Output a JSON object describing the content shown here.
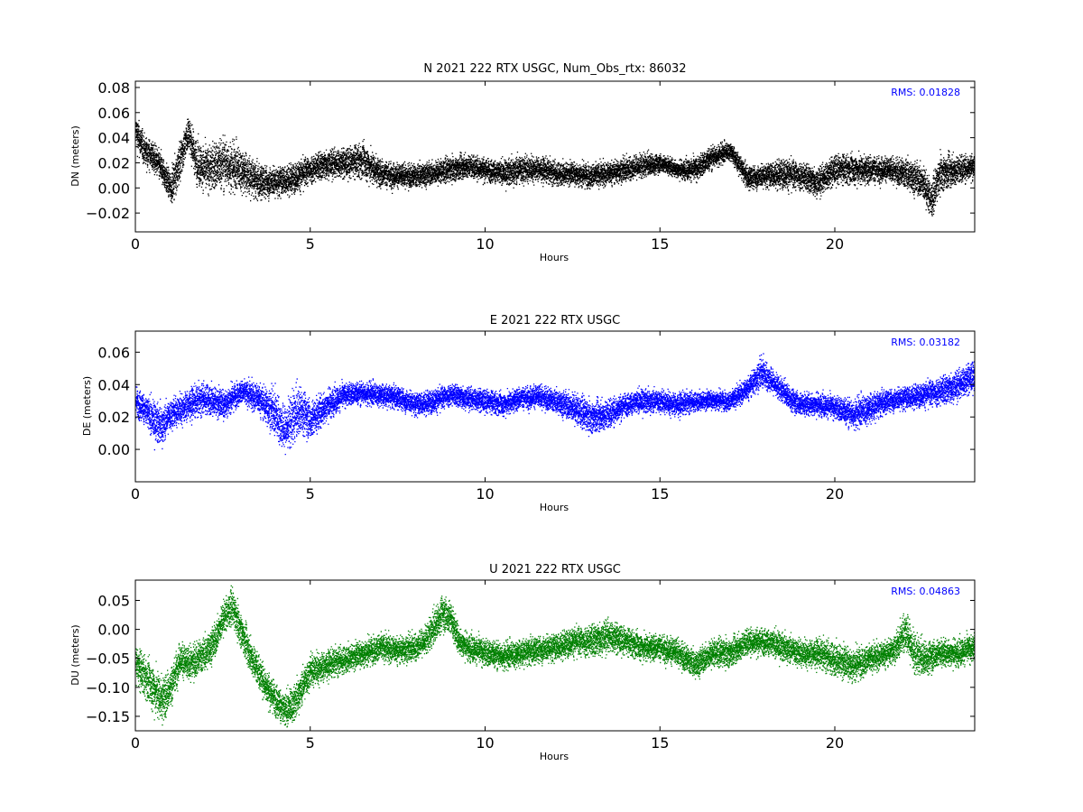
{
  "chart_data": [
    {
      "type": "scatter",
      "title": "N 2021 222 RTX  USGC, Num_Obs_rtx: 86032",
      "xlabel": "Hours",
      "ylabel": "DN (meters)",
      "xlim": [
        0,
        24
      ],
      "ylim": [
        -0.035,
        0.085
      ],
      "xticks": [
        0,
        5,
        10,
        15,
        20
      ],
      "yticks": [
        -0.02,
        0.0,
        0.02,
        0.04,
        0.06,
        0.08
      ],
      "ytick_labels": [
        "−0.02",
        "0.00",
        "0.02",
        "0.04",
        "0.06",
        "0.08"
      ],
      "annotation": "RMS:  0.01828",
      "grid": false,
      "color": "#000000",
      "x": [
        0,
        0.25,
        0.5,
        0.75,
        1.0,
        1.25,
        1.5,
        1.75,
        2.0,
        2.5,
        3.0,
        3.5,
        4.0,
        4.5,
        5.0,
        5.5,
        6.0,
        6.5,
        7.0,
        7.5,
        8.0,
        8.5,
        9.0,
        9.5,
        10.0,
        10.5,
        11.0,
        11.5,
        12.0,
        12.5,
        13.0,
        13.5,
        14.0,
        14.5,
        15.0,
        15.5,
        16.0,
        16.5,
        17.0,
        17.5,
        18.0,
        18.5,
        19.0,
        19.5,
        20.0,
        20.5,
        21.0,
        21.5,
        22.0,
        22.5,
        22.75,
        23.0,
        23.5,
        24.0
      ],
      "y": [
        0.045,
        0.03,
        0.025,
        0.015,
        0.0,
        0.02,
        0.045,
        0.02,
        0.015,
        0.02,
        0.015,
        0.005,
        0.005,
        0.008,
        0.015,
        0.02,
        0.02,
        0.022,
        0.012,
        0.01,
        0.01,
        0.012,
        0.015,
        0.018,
        0.015,
        0.012,
        0.015,
        0.016,
        0.012,
        0.012,
        0.01,
        0.012,
        0.015,
        0.018,
        0.02,
        0.015,
        0.015,
        0.025,
        0.03,
        0.008,
        0.01,
        0.012,
        0.01,
        0.005,
        0.015,
        0.015,
        0.015,
        0.015,
        0.012,
        0.005,
        -0.01,
        0.012,
        0.015,
        0.018
      ],
      "spread": [
        0.012,
        0.01,
        0.01,
        0.01,
        0.01,
        0.015,
        0.01,
        0.015,
        0.015,
        0.018,
        0.015,
        0.012,
        0.01,
        0.01,
        0.01,
        0.01,
        0.01,
        0.012,
        0.01,
        0.008,
        0.008,
        0.008,
        0.008,
        0.008,
        0.008,
        0.008,
        0.01,
        0.008,
        0.008,
        0.008,
        0.008,
        0.008,
        0.008,
        0.008,
        0.006,
        0.006,
        0.008,
        0.008,
        0.006,
        0.008,
        0.008,
        0.01,
        0.01,
        0.01,
        0.01,
        0.01,
        0.01,
        0.008,
        0.01,
        0.012,
        0.012,
        0.012,
        0.01,
        0.008
      ]
    },
    {
      "type": "scatter",
      "title": "E 2021 222 RTX  USGC",
      "xlabel": "Hours",
      "ylabel": "DE (meters)",
      "xlim": [
        0,
        24
      ],
      "ylim": [
        -0.02,
        0.073
      ],
      "xticks": [
        0,
        5,
        10,
        15,
        20
      ],
      "yticks": [
        0.0,
        0.02,
        0.04,
        0.06
      ],
      "ytick_labels": [
        "0.00",
        "0.02",
        "0.04",
        "0.06"
      ],
      "annotation": "RMS:  0.03182",
      "grid": false,
      "color": "#0000ff",
      "x": [
        0,
        0.25,
        0.5,
        0.75,
        1.0,
        1.5,
        2.0,
        2.5,
        3.0,
        3.5,
        4.0,
        4.25,
        4.5,
        4.75,
        5.0,
        5.5,
        6.0,
        6.5,
        7.0,
        7.5,
        8.0,
        8.5,
        9.0,
        9.5,
        10.0,
        10.5,
        11.0,
        11.5,
        12.0,
        12.5,
        13.0,
        13.5,
        14.0,
        14.5,
        15.0,
        15.5,
        16.0,
        16.5,
        17.0,
        17.5,
        17.9,
        18.3,
        18.7,
        19.0,
        19.5,
        20.0,
        20.5,
        21.0,
        21.5,
        22.0,
        22.5,
        23.0,
        23.5,
        24.0
      ],
      "y": [
        0.03,
        0.025,
        0.018,
        0.015,
        0.022,
        0.028,
        0.032,
        0.028,
        0.036,
        0.032,
        0.022,
        0.012,
        0.02,
        0.025,
        0.018,
        0.028,
        0.034,
        0.035,
        0.034,
        0.032,
        0.028,
        0.03,
        0.034,
        0.032,
        0.03,
        0.028,
        0.032,
        0.033,
        0.03,
        0.026,
        0.02,
        0.022,
        0.028,
        0.03,
        0.03,
        0.028,
        0.03,
        0.031,
        0.03,
        0.038,
        0.048,
        0.04,
        0.032,
        0.028,
        0.028,
        0.026,
        0.022,
        0.026,
        0.03,
        0.032,
        0.034,
        0.036,
        0.04,
        0.046
      ],
      "spread": [
        0.008,
        0.008,
        0.01,
        0.01,
        0.008,
        0.008,
        0.008,
        0.008,
        0.006,
        0.008,
        0.012,
        0.012,
        0.014,
        0.012,
        0.01,
        0.008,
        0.006,
        0.006,
        0.006,
        0.006,
        0.006,
        0.006,
        0.006,
        0.006,
        0.006,
        0.006,
        0.006,
        0.006,
        0.006,
        0.008,
        0.008,
        0.008,
        0.006,
        0.006,
        0.006,
        0.006,
        0.005,
        0.005,
        0.005,
        0.006,
        0.008,
        0.006,
        0.006,
        0.006,
        0.006,
        0.006,
        0.008,
        0.008,
        0.006,
        0.006,
        0.006,
        0.008,
        0.008,
        0.008
      ]
    },
    {
      "type": "scatter",
      "title": "U 2021 222 RTX  USGC",
      "xlabel": "Hours",
      "ylabel": "DU (meters)",
      "xlim": [
        0,
        24
      ],
      "ylim": [
        -0.175,
        0.085
      ],
      "xticks": [
        0,
        5,
        10,
        15,
        20
      ],
      "yticks": [
        -0.15,
        -0.1,
        -0.05,
        0.0,
        0.05
      ],
      "ytick_labels": [
        "−0.15",
        "−0.10",
        "−0.05",
        "0.00",
        "0.05"
      ],
      "annotation": "RMS:  0.04863",
      "grid": false,
      "color": "#008000",
      "x": [
        0,
        0.25,
        0.5,
        0.75,
        1.0,
        1.25,
        1.5,
        1.75,
        2.0,
        2.25,
        2.5,
        2.75,
        3.0,
        3.25,
        3.5,
        3.75,
        4.0,
        4.25,
        4.5,
        4.75,
        5.0,
        5.5,
        6.0,
        6.5,
        7.0,
        7.5,
        8.0,
        8.25,
        8.5,
        8.75,
        9.0,
        9.25,
        9.5,
        10.0,
        10.5,
        11.0,
        11.5,
        12.0,
        12.5,
        13.0,
        13.5,
        14.0,
        14.5,
        15.0,
        15.5,
        16.0,
        16.5,
        17.0,
        17.5,
        18.0,
        18.5,
        19.0,
        19.5,
        20.0,
        20.5,
        21.0,
        21.5,
        21.75,
        22.0,
        22.25,
        22.5,
        23.0,
        23.5,
        24.0
      ],
      "y": [
        -0.06,
        -0.08,
        -0.1,
        -0.12,
        -0.1,
        -0.05,
        -0.06,
        -0.05,
        -0.04,
        -0.02,
        0.02,
        0.04,
        0.0,
        -0.04,
        -0.07,
        -0.1,
        -0.12,
        -0.14,
        -0.13,
        -0.1,
        -0.07,
        -0.06,
        -0.05,
        -0.04,
        -0.03,
        -0.035,
        -0.03,
        -0.02,
        0.0,
        0.03,
        0.02,
        -0.02,
        -0.03,
        -0.04,
        -0.045,
        -0.04,
        -0.035,
        -0.03,
        -0.02,
        -0.02,
        -0.01,
        -0.02,
        -0.03,
        -0.03,
        -0.04,
        -0.06,
        -0.04,
        -0.04,
        -0.02,
        -0.02,
        -0.03,
        -0.04,
        -0.04,
        -0.05,
        -0.06,
        -0.05,
        -0.04,
        -0.03,
        0.0,
        -0.04,
        -0.05,
        -0.04,
        -0.04,
        -0.03
      ],
      "spread": [
        0.03,
        0.03,
        0.035,
        0.035,
        0.03,
        0.025,
        0.025,
        0.025,
        0.025,
        0.025,
        0.025,
        0.025,
        0.025,
        0.025,
        0.025,
        0.025,
        0.025,
        0.025,
        0.025,
        0.025,
        0.025,
        0.02,
        0.02,
        0.02,
        0.02,
        0.02,
        0.02,
        0.02,
        0.025,
        0.025,
        0.025,
        0.02,
        0.02,
        0.02,
        0.02,
        0.02,
        0.02,
        0.02,
        0.02,
        0.025,
        0.025,
        0.02,
        0.02,
        0.02,
        0.02,
        0.02,
        0.02,
        0.02,
        0.02,
        0.02,
        0.02,
        0.02,
        0.02,
        0.025,
        0.025,
        0.02,
        0.02,
        0.02,
        0.03,
        0.03,
        0.025,
        0.02,
        0.02,
        0.02
      ]
    }
  ],
  "colors": {
    "annotation": "#0000ff",
    "axes": "#000000"
  }
}
